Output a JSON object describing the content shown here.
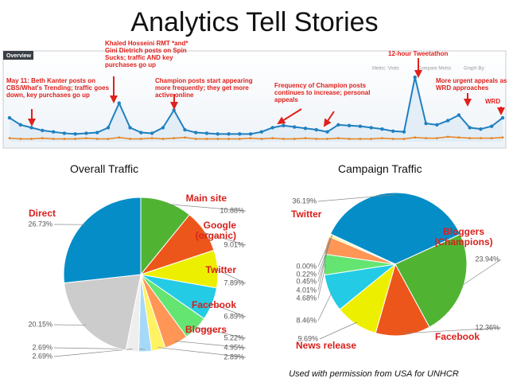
{
  "title": "Analytics Tell Stories",
  "credit": "Used with permission from USA for UNHCR",
  "chart_data": [
    {
      "type": "line",
      "tab": "Overview",
      "controls": [
        "Metric: Visits",
        "Compare Metric",
        "Graph By:"
      ],
      "ylim": [
        0,
        100
      ],
      "series": [
        {
          "color": "#1f80c0",
          "values": [
            34,
            24,
            20,
            16,
            14,
            12,
            11,
            12,
            13,
            20,
            55,
            20,
            13,
            12,
            20,
            45,
            17,
            13,
            12,
            11,
            11,
            11,
            11,
            14,
            20,
            23,
            21,
            19,
            17,
            14,
            24,
            23,
            22,
            20,
            18,
            15,
            14,
            92,
            26,
            24,
            30,
            38,
            20,
            18,
            22,
            34
          ]
        },
        {
          "color": "#e8821e",
          "values": [
            5,
            4,
            4,
            5,
            4,
            4,
            4,
            5,
            4,
            4,
            6,
            4,
            4,
            5,
            4,
            5,
            6,
            4,
            4,
            4,
            4,
            4,
            5,
            4,
            5,
            4,
            4,
            5,
            4,
            4,
            5,
            4,
            4,
            4,
            5,
            4,
            4,
            6,
            5,
            5,
            7,
            6,
            5,
            5,
            5,
            6
          ]
        }
      ],
      "annotations": [
        "May 11: Beth Kanter posts on CBS/What's Trending; traffic goes down, key purchases go up",
        "Khaled Hosseini RMT *and* Gini Dietrich posts on Spin Sucks; traffic AND key purchases go up",
        "Champion posts start appearing more frequently; they get more active online",
        "Frequency of Champion posts continues to increase; personal appeals",
        "12-hour Tweetathon",
        "More urgent appeals as WRD approaches",
        "WRD"
      ]
    },
    {
      "type": "pie",
      "title": "Overall Traffic",
      "categories": [
        "Main site",
        "Google (organic)",
        "Twitter",
        "Facebook",
        "Bloggers",
        null,
        null,
        null,
        null,
        null,
        "Direct"
      ],
      "values": [
        10.88,
        9.01,
        7.89,
        6.89,
        5.22,
        4.95,
        2.89,
        2.69,
        2.69,
        20.15,
        26.73
      ],
      "value_labels": [
        "10.88%",
        "9.01%",
        "7.89%",
        "6.89%",
        "5.22%",
        "4.95%",
        "2.89%",
        "2.69%",
        "2.69%",
        "20.15%",
        "26.73%"
      ],
      "colors": [
        "#50b432",
        "#ed561b",
        "#edef00",
        "#24cbe5",
        "#64e572",
        "#ff9655",
        "#fff263",
        "#a6d9f7",
        "#eeeeee",
        "#cccccc",
        "#058dc7"
      ]
    },
    {
      "type": "pie",
      "title": "Campaign Traffic",
      "categories": [
        "Twitter",
        "Bloggers (Champions)",
        "Facebook",
        "News release",
        null,
        null,
        null,
        null,
        null,
        null
      ],
      "values": [
        36.19,
        23.94,
        12.36,
        9.69,
        8.46,
        4.68,
        4.01,
        0.45,
        0.22,
        0.0
      ],
      "value_labels": [
        "36.19%",
        "23.94%",
        "12.36%",
        "9.69%",
        "8.46%",
        "4.68%",
        "4.01%",
        "0.45%",
        "0.22%",
        "0.00%"
      ],
      "colors": [
        "#058dc7",
        "#50b432",
        "#ed561b",
        "#edef00",
        "#24cbe5",
        "#64e572",
        "#ff9655",
        "#fff263",
        "#a6d9f7",
        "#eeeeee"
      ]
    }
  ]
}
